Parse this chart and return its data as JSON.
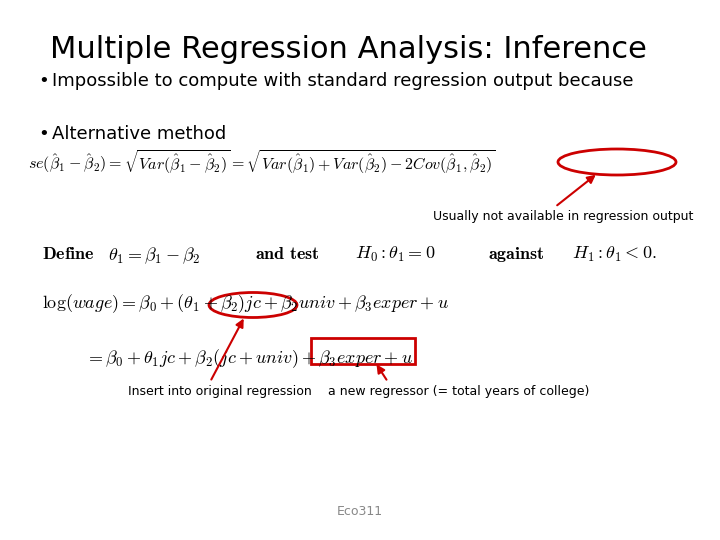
{
  "title": "Multiple Regression Analysis: Inference",
  "bullet1": "Impossible to compute with standard regression output because",
  "bullet2": "Alternative method",
  "annotation1": "Usually not available in regression output",
  "annotation2": "Insert into original regression",
  "annotation3": "a new regressor (= total years of college)",
  "footer": "Eco311",
  "bg_color": "#ffffff",
  "text_color": "#000000",
  "red_color": "#cc0000",
  "gray_color": "#888888"
}
